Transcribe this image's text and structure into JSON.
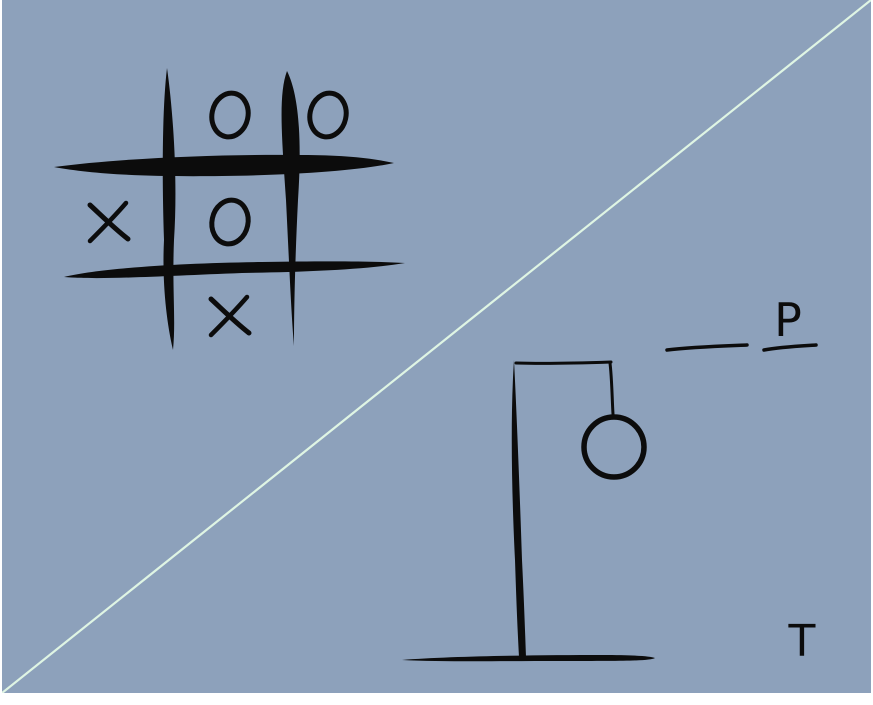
{
  "colors": {
    "background": "#8da1bb",
    "divider": "#dff5e4",
    "ink": "#0c0c0c",
    "page": "#ffffff"
  },
  "tic_tac_toe": {
    "cells": [
      [
        "",
        "O",
        "O"
      ],
      [
        "X",
        "O",
        ""
      ],
      [
        "",
        "X",
        ""
      ]
    ]
  },
  "hangman": {
    "word_slots": [
      "",
      "P"
    ],
    "wrong_guesses": [
      "T"
    ],
    "figure_parts": [
      "head"
    ]
  }
}
